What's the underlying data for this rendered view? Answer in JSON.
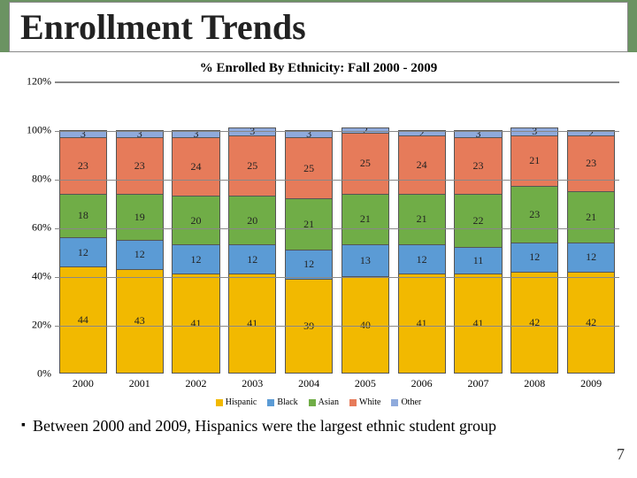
{
  "title": "Enrollment Trends",
  "chart": {
    "title": "% Enrolled  By Ethnicity: Fall 2000 - 2009",
    "type": "stacked-bar",
    "ymax": 120,
    "ytick_step": 20,
    "yticks": [
      "0%",
      "20%",
      "40%",
      "60%",
      "80%",
      "100%",
      "120%"
    ],
    "categories": [
      "2000",
      "2001",
      "2002",
      "2003",
      "2004",
      "2005",
      "2006",
      "2007",
      "2008",
      "2009"
    ],
    "series": [
      {
        "name": "Hispanic",
        "color": "#f2b900"
      },
      {
        "name": "Black",
        "color": "#5b9bd5"
      },
      {
        "name": "Asian",
        "color": "#70ad47"
      },
      {
        "name": "White",
        "color": "#e67b5a"
      },
      {
        "name": "Other",
        "color": "#8faadc"
      }
    ],
    "stacks": [
      {
        "values": [
          44,
          12,
          18,
          23,
          3
        ]
      },
      {
        "values": [
          43,
          12,
          19,
          23,
          3
        ]
      },
      {
        "values": [
          41,
          12,
          20,
          24,
          3
        ]
      },
      {
        "values": [
          41,
          12,
          20,
          25,
          3
        ]
      },
      {
        "values": [
          39,
          12,
          21,
          25,
          3
        ]
      },
      {
        "values": [
          40,
          13,
          21,
          25,
          2
        ]
      },
      {
        "values": [
          41,
          12,
          21,
          24,
          2
        ]
      },
      {
        "values": [
          41,
          11,
          22,
          23,
          3
        ]
      },
      {
        "values": [
          42,
          12,
          23,
          21,
          3
        ]
      },
      {
        "values": [
          42,
          12,
          21,
          23,
          2
        ]
      }
    ],
    "bar_border_color": "#555",
    "grid_color": "#888",
    "background_color": "#ffffff",
    "label_fontsize": 12
  },
  "bullet": "Between 2000 and 2009, Hispanics were the largest ethnic student group",
  "page_number": "7",
  "title_bar_color": "#6b9362"
}
